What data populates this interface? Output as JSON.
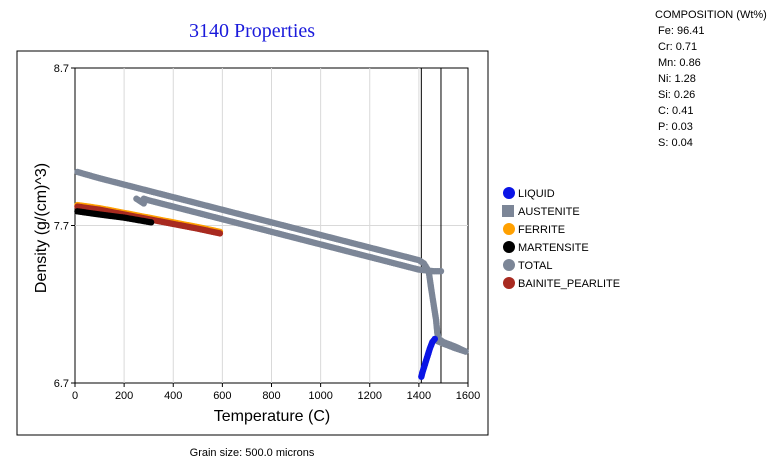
{
  "chart_data": {
    "type": "scatter",
    "title": "3140 Properties",
    "xlabel": "Temperature (C)",
    "ylabel": "Density (g/(cm)^3)",
    "xlim": [
      0,
      1600
    ],
    "ylim": [
      6.7,
      8.7
    ],
    "x_ticks": [
      "0",
      "200",
      "400",
      "600",
      "800",
      "1000",
      "1200",
      "1400",
      "1600"
    ],
    "y_ticks": [
      "6.7",
      "7.7",
      "8.7"
    ],
    "vertical_lines": [
      1410,
      1490
    ],
    "grid": true,
    "legend_position": "right",
    "series": [
      {
        "name": "LIQUID",
        "color": "#0a14e6",
        "points": [
          [
            1410,
            6.74
          ],
          [
            1415,
            6.77
          ],
          [
            1425,
            6.82
          ],
          [
            1435,
            6.87
          ],
          [
            1445,
            6.92
          ],
          [
            1455,
            6.96
          ],
          [
            1465,
            6.98
          ]
        ]
      },
      {
        "name": "AUSTENITE",
        "color": "#7c8697",
        "points": [
          [
            280,
            7.87
          ],
          [
            300,
            7.86
          ],
          [
            400,
            7.82
          ],
          [
            500,
            7.78
          ],
          [
            600,
            7.74
          ],
          [
            700,
            7.7
          ],
          [
            800,
            7.66
          ],
          [
            900,
            7.62
          ],
          [
            1000,
            7.58
          ],
          [
            1100,
            7.54
          ],
          [
            1200,
            7.5
          ],
          [
            1300,
            7.46
          ],
          [
            1400,
            7.42
          ],
          [
            1460,
            7.41
          ],
          [
            1490,
            7.41
          ],
          [
            1470,
            6.97
          ],
          [
            1500,
            6.95
          ],
          [
            1550,
            6.92
          ],
          [
            1590,
            6.9
          ]
        ]
      },
      {
        "name": "FERRITE",
        "color": "#ffa000",
        "points": [
          [
            10,
            7.83
          ],
          [
            100,
            7.81
          ],
          [
            200,
            7.78
          ],
          [
            300,
            7.75
          ],
          [
            400,
            7.72
          ],
          [
            500,
            7.69
          ],
          [
            590,
            7.66
          ]
        ]
      },
      {
        "name": "MARTENSITE",
        "color": "#000000",
        "points": [
          [
            10,
            7.79
          ],
          [
            100,
            7.77
          ],
          [
            200,
            7.75
          ],
          [
            310,
            7.72
          ]
        ]
      },
      {
        "name": "TOTAL",
        "color": "#7c8697",
        "points": [
          [
            10,
            8.04
          ],
          [
            100,
            8.0
          ],
          [
            200,
            7.96
          ],
          [
            300,
            7.92
          ],
          [
            400,
            7.88
          ],
          [
            500,
            7.84
          ],
          [
            600,
            7.8
          ],
          [
            700,
            7.76
          ],
          [
            800,
            7.72
          ],
          [
            900,
            7.68
          ],
          [
            1000,
            7.64
          ],
          [
            1100,
            7.6
          ],
          [
            1200,
            7.56
          ],
          [
            1300,
            7.52
          ],
          [
            1400,
            7.48
          ],
          [
            1420,
            7.46
          ],
          [
            1440,
            7.41
          ],
          [
            1450,
            7.3
          ],
          [
            1460,
            7.2
          ],
          [
            1470,
            7.1
          ],
          [
            1475,
            7.02
          ],
          [
            1480,
            6.98
          ],
          [
            1500,
            6.96
          ],
          [
            1550,
            6.93
          ],
          [
            1590,
            6.9
          ],
          [
            250,
            7.87
          ],
          [
            280,
            7.84
          ]
        ]
      },
      {
        "name": "BAINITE_PEARLITE",
        "color": "#a82a20",
        "points": [
          [
            10,
            7.82
          ],
          [
            100,
            7.8
          ],
          [
            200,
            7.77
          ],
          [
            300,
            7.74
          ],
          [
            400,
            7.71
          ],
          [
            500,
            7.68
          ],
          [
            590,
            7.65
          ]
        ]
      }
    ]
  },
  "composition": {
    "title": "COMPOSITION (Wt%)",
    "items": [
      "Fe: 96.41",
      "Cr: 0.71",
      "Mn: 0.86",
      "Ni: 1.28",
      "Si: 0.26",
      "C: 0.41",
      "P: 0.03",
      "S: 0.04"
    ]
  },
  "footer": {
    "grain_size": "Grain size: 500.0 microns"
  }
}
